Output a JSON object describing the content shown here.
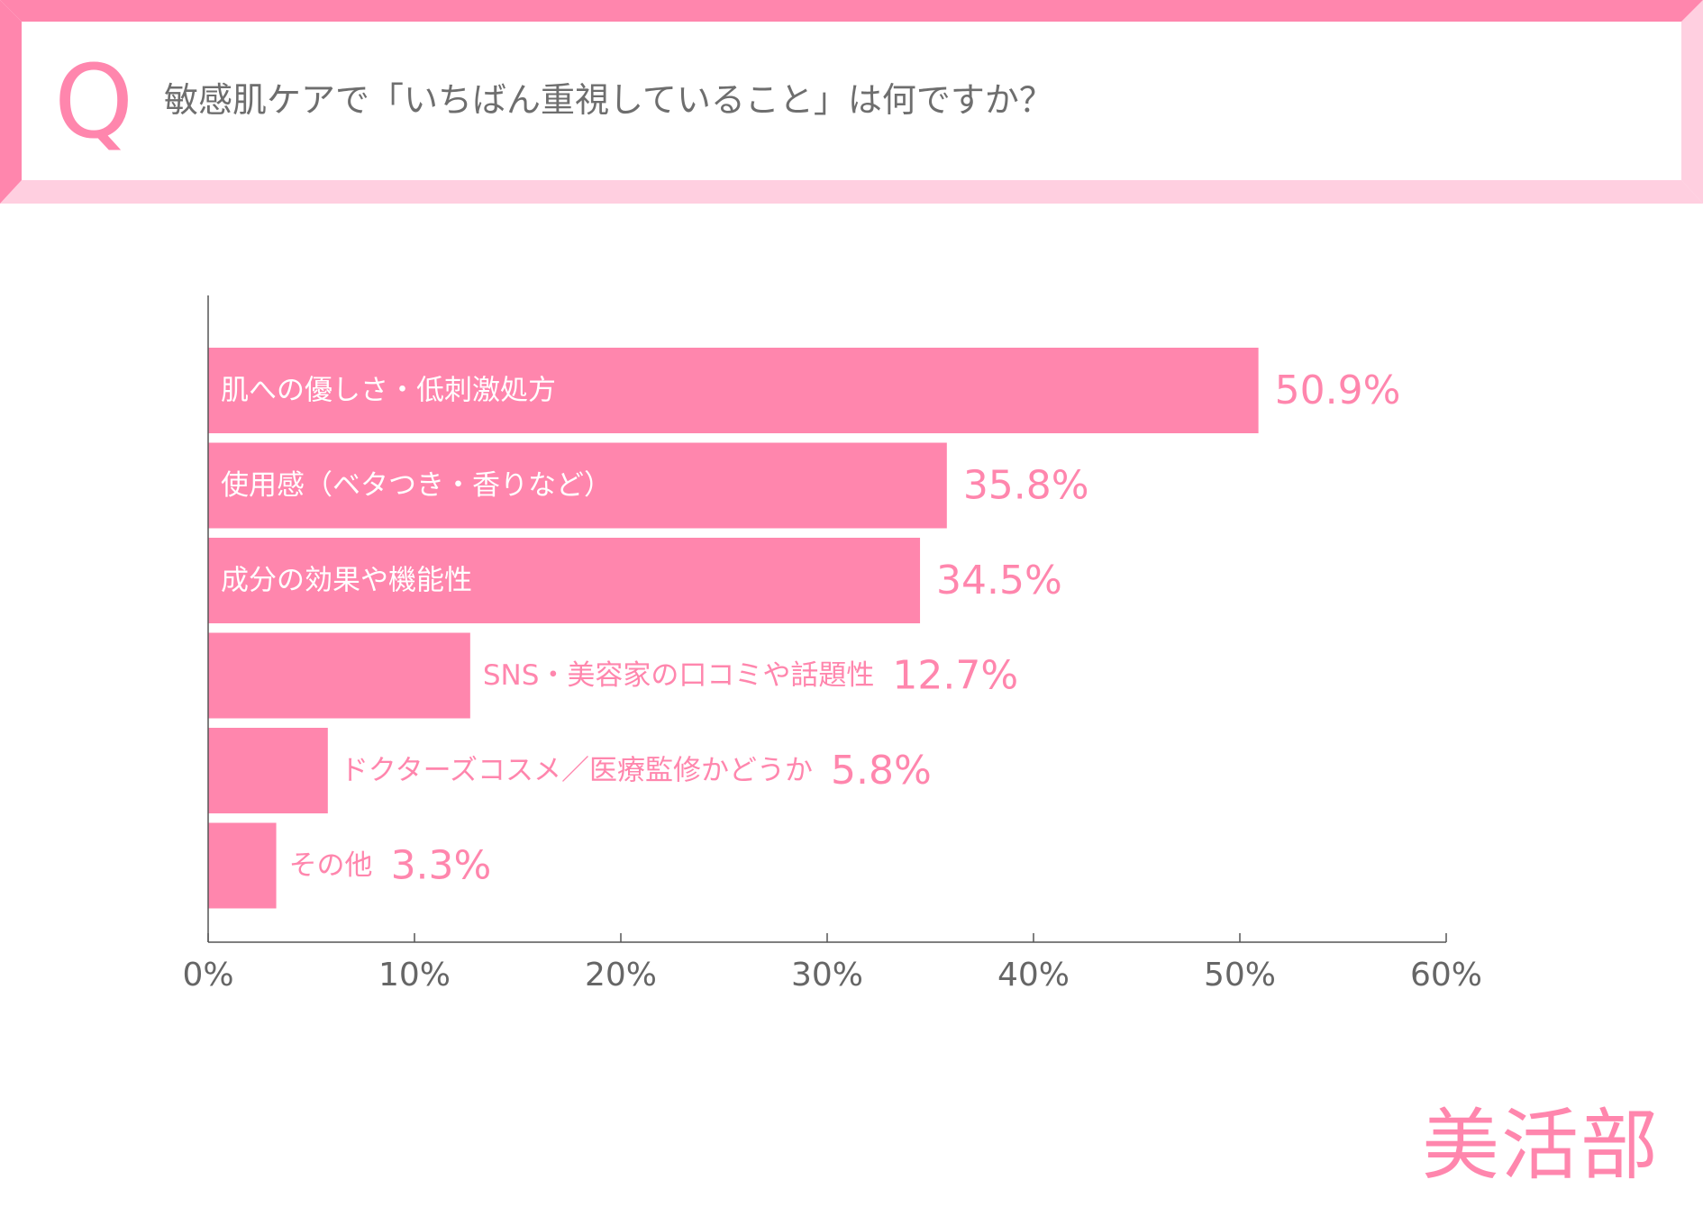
{
  "header": {
    "q_letter": "Q",
    "question": "敏感肌ケアで「いちばん重視していること」は何ですか？"
  },
  "brand": {
    "name": "美活部"
  },
  "colors": {
    "primary": "#ff86ad",
    "light": "#ffcfe0",
    "question_text": "#6e6e6e",
    "axis": "#555555",
    "tick_text": "#666666"
  },
  "chart_data": {
    "type": "bar",
    "orientation": "horizontal",
    "categories": [
      "肌への優しさ・低刺激処方",
      "使用感（ベタつき・香りなど）",
      "成分の効果や機能性",
      "SNS・美容家の口コミや話題性",
      "ドクターズコスメ／医療監修かどうか",
      "その他"
    ],
    "values": [
      50.9,
      35.8,
      34.5,
      12.7,
      5.8,
      3.3
    ],
    "value_labels": [
      "50.9%",
      "35.8%",
      "34.5%",
      "12.7%",
      "5.8%",
      "3.3%"
    ],
    "xlim": [
      0,
      60
    ],
    "xticks": [
      0,
      10,
      20,
      30,
      40,
      50,
      60
    ],
    "xtick_labels": [
      "0%",
      "10%",
      "20%",
      "30%",
      "40%",
      "50%",
      "60%"
    ],
    "grid": false,
    "legend": "none"
  }
}
